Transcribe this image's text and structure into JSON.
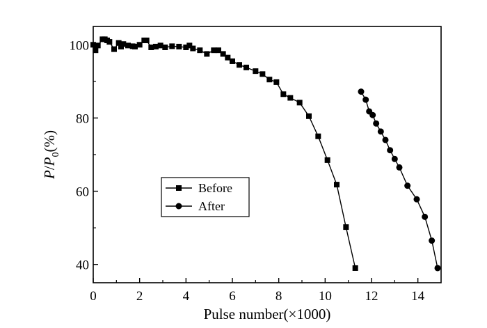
{
  "chart_data": {
    "type": "line",
    "xlabel": "Pulse number(×1000)",
    "ylabel_parts": {
      "P": "P",
      "slash": "/",
      "P0_base": "P",
      "P0_sub": "0",
      "unit": "(%)"
    },
    "xlim": [
      0,
      15
    ],
    "ylim": [
      35,
      105
    ],
    "x_ticks": [
      0,
      2,
      4,
      6,
      8,
      10,
      12,
      14
    ],
    "y_ticks": [
      40,
      60,
      80,
      100
    ],
    "x_tick_labels": [
      "0",
      "2",
      "4",
      "6",
      "8",
      "10",
      "12",
      "14"
    ],
    "y_tick_labels": [
      "40",
      "60",
      "80",
      "100"
    ],
    "grid": false,
    "legend_position": "center-left",
    "series": [
      {
        "name": "Before",
        "marker": "square",
        "x": [
          0.0,
          0.1,
          0.2,
          0.4,
          0.5,
          0.6,
          0.7,
          0.9,
          1.1,
          1.2,
          1.3,
          1.5,
          1.7,
          1.8,
          2.0,
          2.2,
          2.3,
          2.5,
          2.7,
          2.9,
          3.1,
          3.4,
          3.7,
          4.0,
          4.15,
          4.3,
          4.6,
          4.9,
          5.2,
          5.4,
          5.6,
          5.8,
          6.0,
          6.3,
          6.6,
          7.0,
          7.3,
          7.6,
          7.9,
          8.2,
          8.5,
          8.9,
          9.3,
          9.7,
          10.1,
          10.5,
          10.9,
          11.3
        ],
        "values": [
          100.0,
          98.5,
          99.8,
          101.5,
          101.5,
          101.2,
          100.8,
          98.8,
          100.5,
          99.5,
          100.2,
          99.8,
          99.6,
          99.5,
          100.0,
          101.2,
          101.2,
          99.3,
          99.5,
          99.8,
          99.3,
          99.6,
          99.5,
          99.3,
          99.8,
          99.0,
          98.5,
          97.5,
          98.5,
          98.5,
          97.5,
          96.5,
          95.5,
          94.5,
          93.8,
          92.8,
          92.0,
          90.5,
          89.8,
          86.5,
          85.5,
          84.2,
          80.5,
          75.0,
          68.5,
          61.8,
          50.2,
          39.0
        ]
      },
      {
        "name": "After",
        "marker": "circle",
        "x": [
          11.55,
          11.75,
          11.9,
          12.05,
          12.2,
          12.4,
          12.6,
          12.8,
          13.0,
          13.2,
          13.55,
          13.95,
          14.3,
          14.6,
          14.85
        ],
        "values": [
          87.2,
          85.0,
          81.8,
          80.8,
          78.5,
          76.3,
          74.0,
          71.2,
          68.8,
          66.5,
          61.5,
          57.8,
          53.0,
          46.5,
          39.0
        ]
      }
    ]
  }
}
